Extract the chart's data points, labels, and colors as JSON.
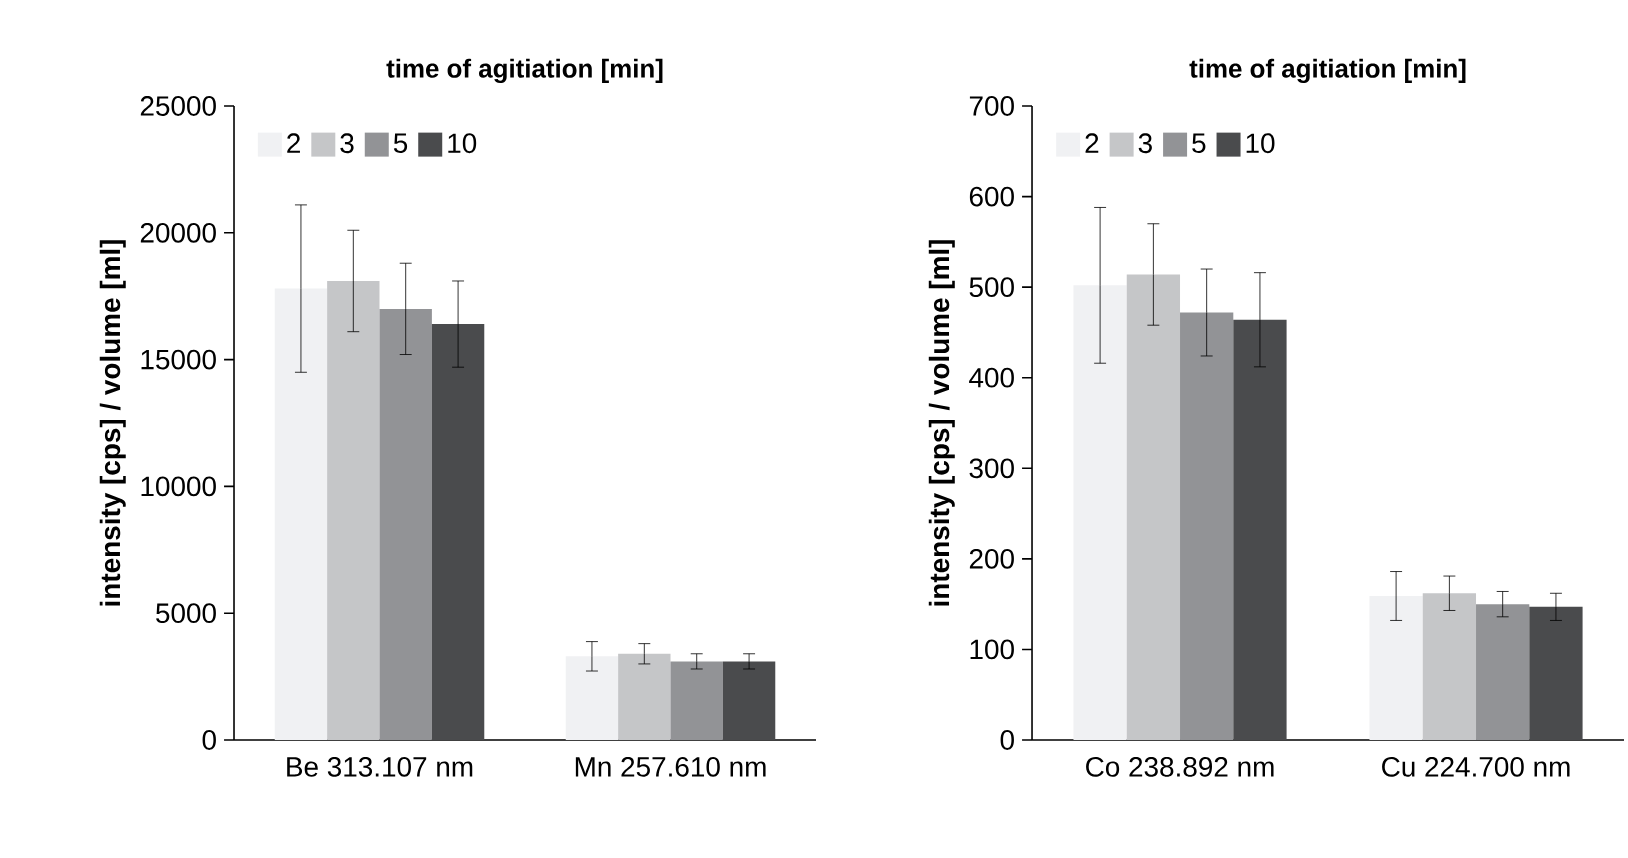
{
  "chart_data": [
    {
      "type": "bar",
      "legend_title": "time of agitiation [min]",
      "ylabel": "intensity [cps] / volume [ml]",
      "categories": [
        "Be 313.107 nm",
        "Mn 257.610 nm"
      ],
      "ylim": [
        0,
        25000
      ],
      "yticks": [
        0,
        5000,
        10000,
        15000,
        20000,
        25000
      ],
      "legend": "top left",
      "series": [
        {
          "name": "2",
          "color": "#f0f1f3",
          "values": [
            17800,
            3300
          ],
          "errors": [
            3300,
            580
          ]
        },
        {
          "name": "3",
          "color": "#c5c6c8",
          "values": [
            18100,
            3400
          ],
          "errors": [
            2000,
            400
          ]
        },
        {
          "name": "5",
          "color": "#929396",
          "values": [
            17000,
            3100
          ],
          "errors": [
            1800,
            300
          ]
        },
        {
          "name": "10",
          "color": "#4a4b4d",
          "values": [
            16400,
            3100
          ],
          "errors": [
            1700,
            300
          ]
        }
      ]
    },
    {
      "type": "bar",
      "legend_title": "time of agitiation [min]",
      "ylabel": "intensity [cps] / volume [ml]",
      "categories": [
        "Co 238.892 nm",
        "Cu 224.700 nm"
      ],
      "ylim": [
        0,
        700
      ],
      "yticks": [
        0,
        100,
        200,
        300,
        400,
        500,
        600,
        700
      ],
      "legend": "top left",
      "series": [
        {
          "name": "2",
          "color": "#f0f1f3",
          "values": [
            502,
            159
          ],
          "errors": [
            86,
            27
          ]
        },
        {
          "name": "3",
          "color": "#c5c6c8",
          "values": [
            514,
            162
          ],
          "errors": [
            56,
            19
          ]
        },
        {
          "name": "5",
          "color": "#929396",
          "values": [
            472,
            150
          ],
          "errors": [
            48,
            14
          ]
        },
        {
          "name": "10",
          "color": "#4a4b4d",
          "values": [
            464,
            147
          ],
          "errors": [
            52,
            15
          ]
        }
      ]
    }
  ]
}
